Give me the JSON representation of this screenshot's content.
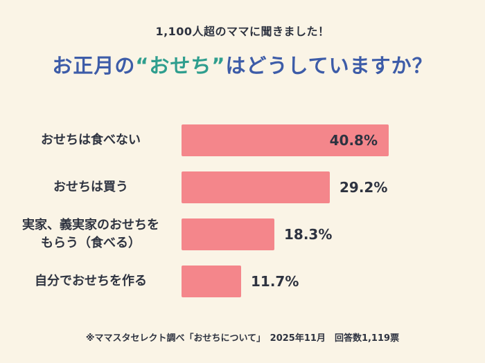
{
  "page": {
    "subtitle": "1,100人超のママに聞きました！",
    "title_prefix": "お正月の",
    "title_highlight": "“おせち”",
    "title_suffix": "はどうしていますか？",
    "footnote": "※ママスタセレクト調べ「おせちについて」　2025年11月　回答数1,119票"
  },
  "colors": {
    "background": "#FAF4E6",
    "bar_pink": "#F4868B",
    "title_blue": "#3D5CA8",
    "highlight_teal": "#2F9E8E",
    "text_dark": "#2E3340"
  },
  "chart_data": {
    "type": "bar",
    "orientation": "horizontal",
    "title": "お正月の“おせち”はどうしていますか？",
    "categories": [
      "おせちは食べない",
      "おせちは買う",
      "実家、義実家のおせちを\nもらう（食べる）",
      "自分でおせちを作る"
    ],
    "values": [
      40.8,
      29.2,
      18.3,
      11.7
    ],
    "value_labels": [
      "40.8%",
      "29.2%",
      "18.3%",
      "11.7%"
    ],
    "xlim": [
      0,
      42
    ],
    "grid": false,
    "legend": false
  }
}
